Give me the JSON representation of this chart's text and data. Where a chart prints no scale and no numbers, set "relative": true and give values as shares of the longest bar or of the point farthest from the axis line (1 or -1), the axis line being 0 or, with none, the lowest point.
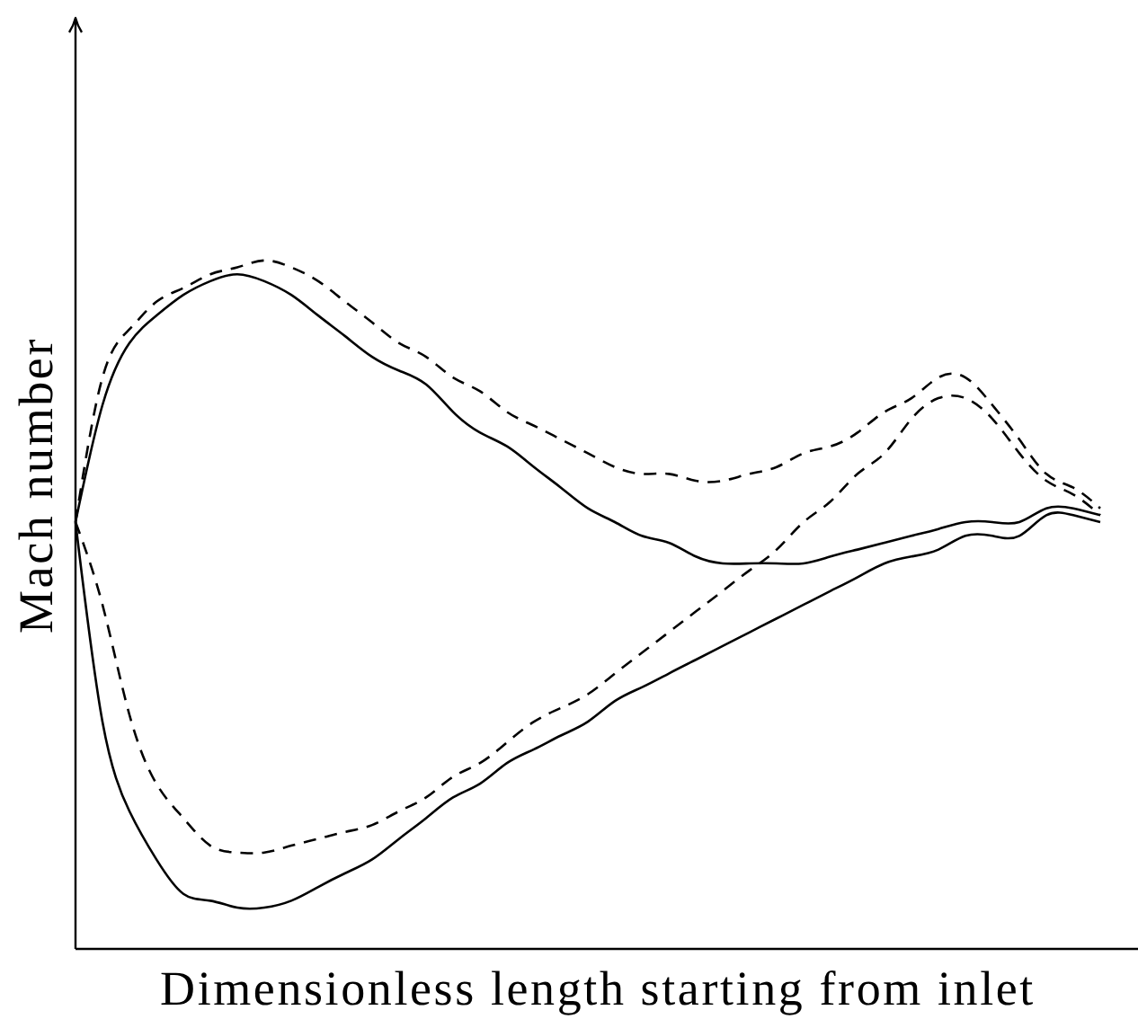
{
  "chart_data": {
    "type": "line",
    "xlabel": "Dimensionless length starting from inlet",
    "ylabel": "Mach number",
    "relative": true,
    "marker": "none",
    "categories": [
      null,
      null,
      null,
      null,
      null,
      null,
      null,
      null,
      null,
      null,
      null,
      null,
      null,
      null,
      null,
      null,
      null,
      null,
      null,
      null,
      null,
      null,
      null,
      null,
      null,
      null,
      null,
      null,
      null,
      null,
      null,
      null,
      null,
      null,
      null,
      null,
      null,
      null,
      null
    ],
    "series": [
      {
        "color": "#000000",
        "line_style": "solid",
        "values": [
          0.62,
          0.79,
          0.88,
          0.92,
          0.95,
          0.97,
          0.98,
          0.97,
          0.95,
          0.92,
          0.89,
          0.86,
          0.84,
          0.82,
          0.78,
          0.75,
          0.73,
          0.7,
          0.67,
          0.64,
          0.62,
          0.6,
          0.59,
          0.57,
          0.56,
          0.56,
          0.56,
          0.56,
          0.57,
          0.58,
          0.59,
          0.6,
          0.61,
          0.62,
          0.62,
          0.62,
          0.64,
          0.64,
          0.63
        ]
      },
      {
        "color": "#000000",
        "line_style": "dashed",
        "values": [
          0.62,
          0.83,
          0.9,
          0.94,
          0.96,
          0.98,
          0.99,
          1,
          0.99,
          0.97,
          0.94,
          0.91,
          0.88,
          0.86,
          0.83,
          0.81,
          0.78,
          0.76,
          0.74,
          0.72,
          0.7,
          0.69,
          0.69,
          0.68,
          0.68,
          0.69,
          0.7,
          0.72,
          0.73,
          0.75,
          0.78,
          0.8,
          0.83,
          0.83,
          0.79,
          0.74,
          0.69,
          0.67,
          0.64
        ]
      },
      {
        "color": "#000000",
        "line_style": "dashed",
        "values": [
          0.62,
          0.5,
          0.34,
          0.24,
          0.19,
          0.15,
          0.14,
          0.14,
          0.15,
          0.16,
          0.17,
          0.18,
          0.2,
          0.22,
          0.25,
          0.27,
          0.3,
          0.33,
          0.35,
          0.37,
          0.4,
          0.43,
          0.46,
          0.49,
          0.52,
          0.55,
          0.58,
          0.62,
          0.65,
          0.69,
          0.72,
          0.77,
          0.8,
          0.8,
          0.77,
          0.72,
          0.68,
          0.66,
          0.63
        ]
      },
      {
        "color": "#000000",
        "line_style": "solid",
        "values": [
          0.62,
          0.33,
          0.2,
          0.13,
          0.08,
          0.07,
          0.06,
          0.06,
          0.07,
          0.09,
          0.11,
          0.13,
          0.16,
          0.19,
          0.22,
          0.24,
          0.27,
          0.29,
          0.31,
          0.33,
          0.36,
          0.38,
          0.4,
          0.42,
          0.44,
          0.46,
          0.48,
          0.5,
          0.52,
          0.54,
          0.56,
          0.57,
          0.58,
          0.6,
          0.6,
          0.6,
          0.63,
          0.63,
          0.62
        ]
      }
    ]
  }
}
